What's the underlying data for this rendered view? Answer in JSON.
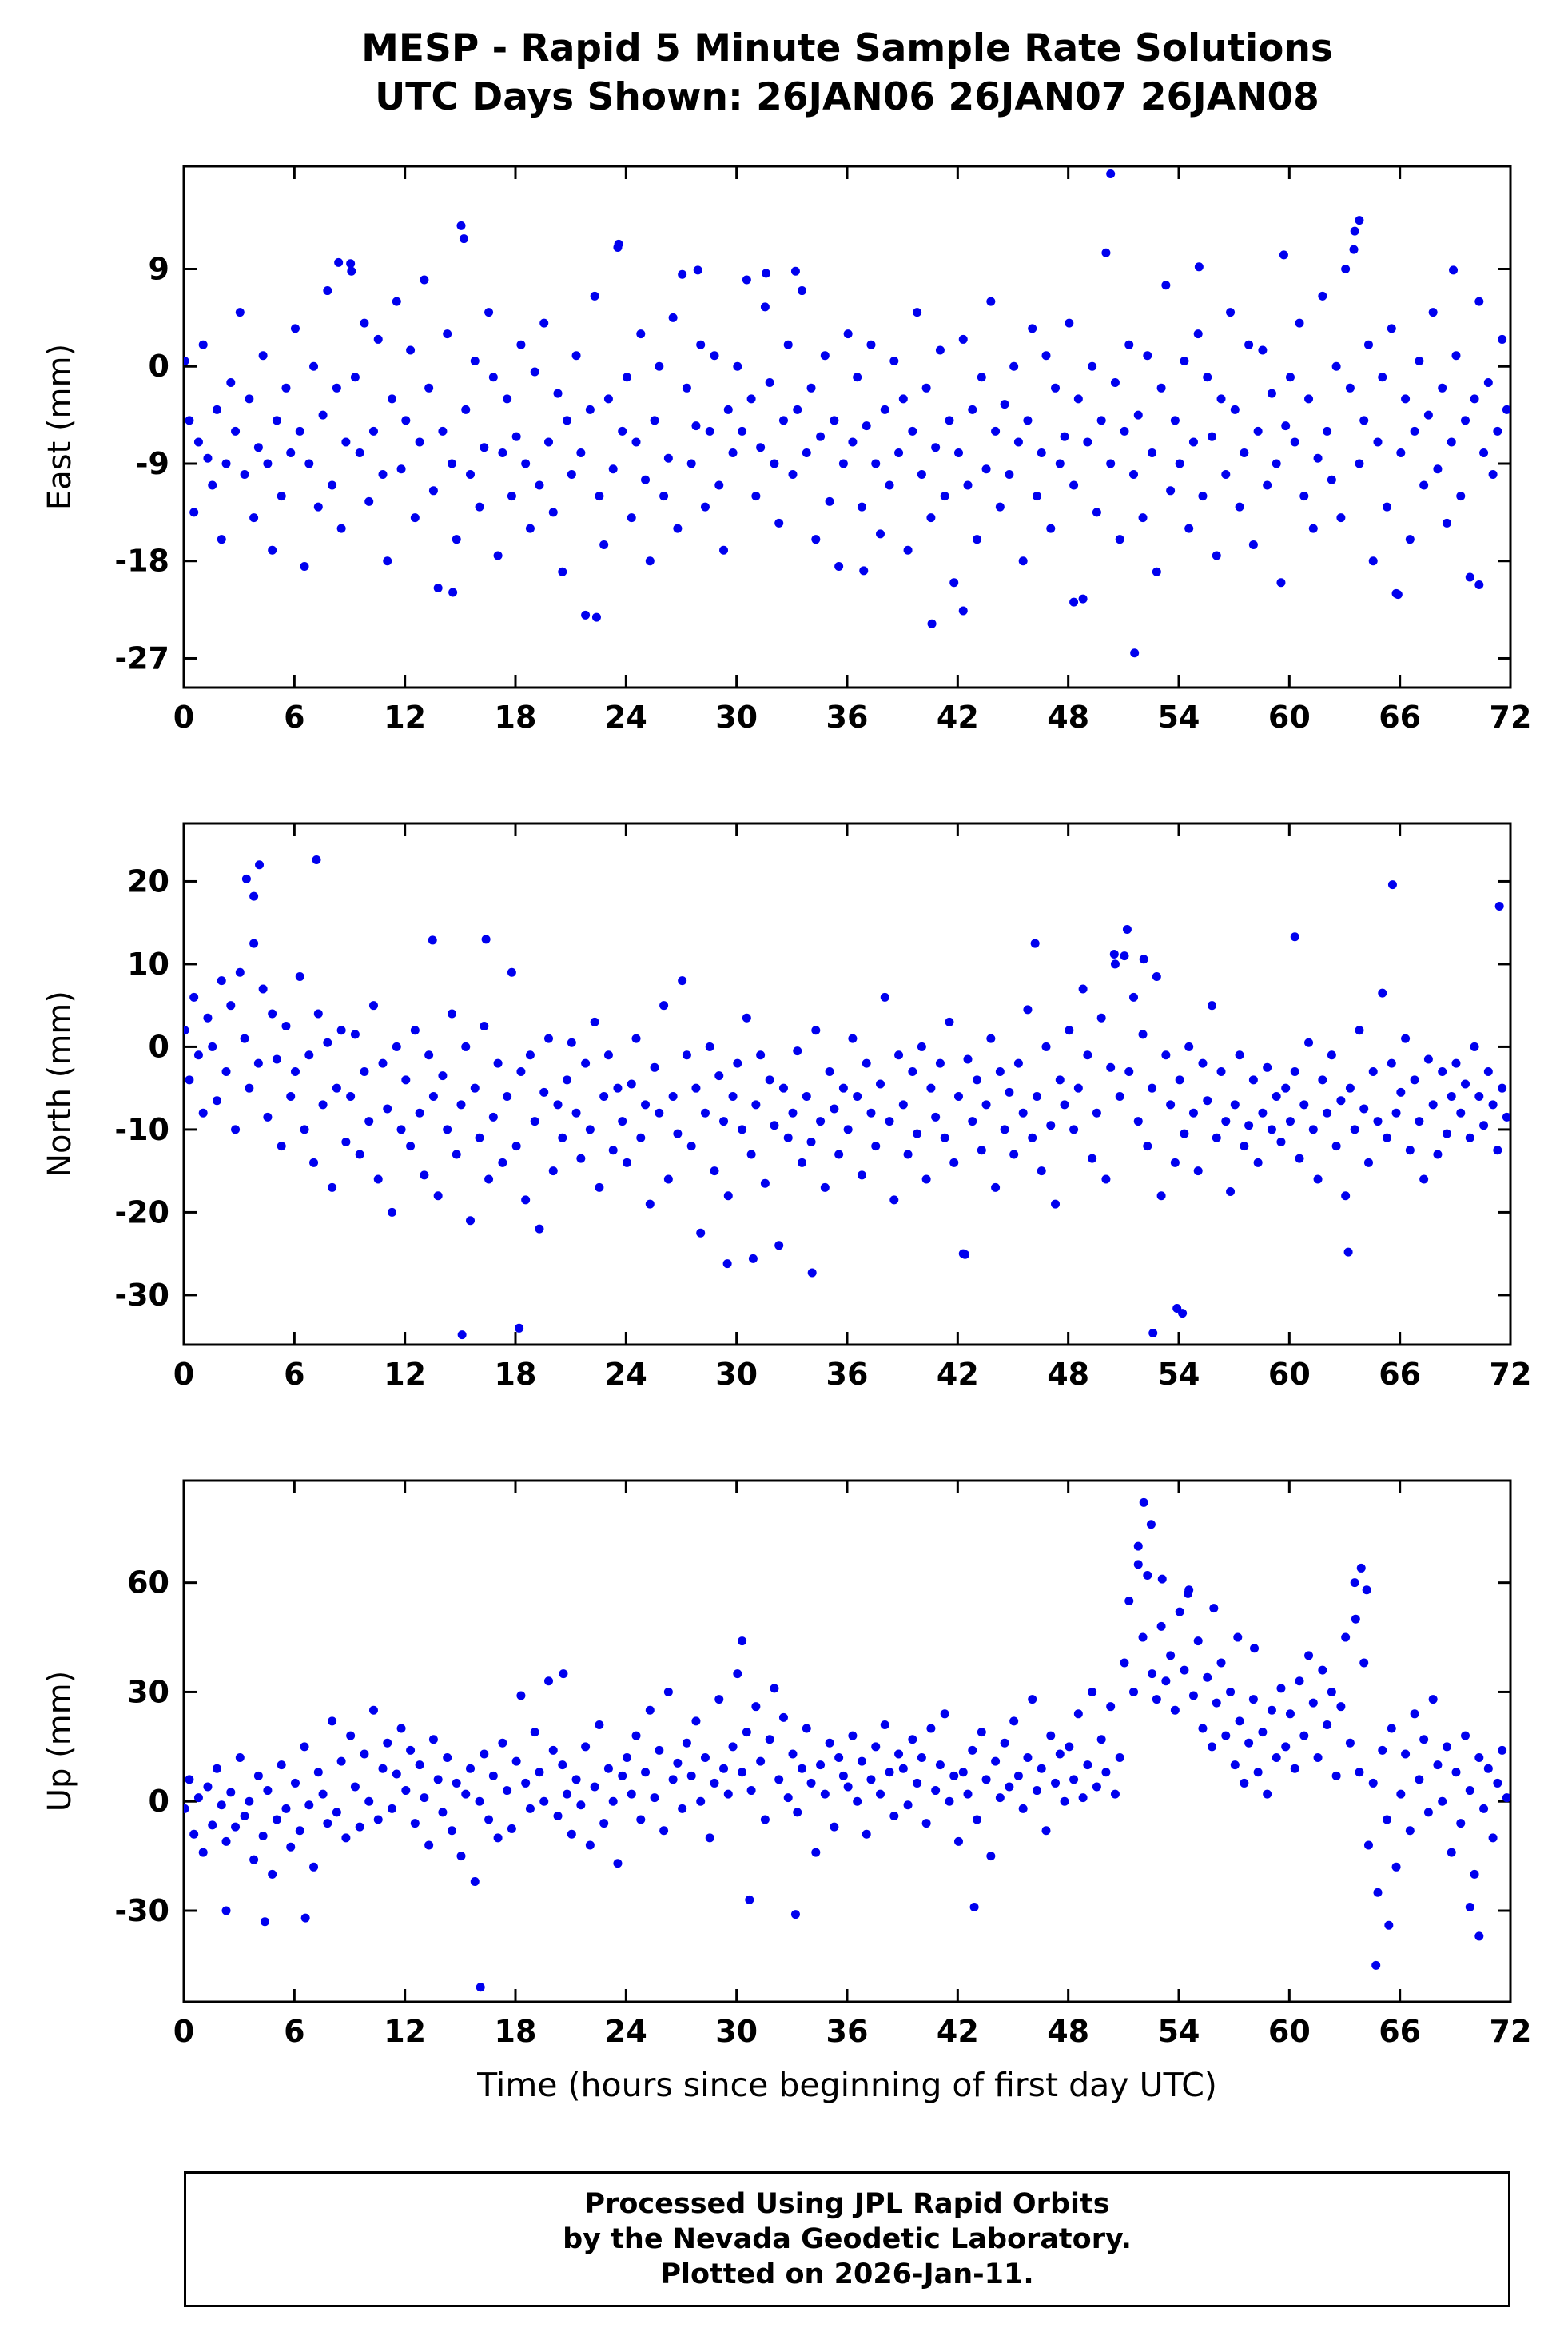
{
  "title": {
    "line1": "MESP - Rapid 5 Minute Sample Rate Solutions",
    "line2": "UTC Days Shown:  26JAN06 26JAN07 26JAN08"
  },
  "footer": {
    "line1": "Processed Using JPL Rapid Orbits",
    "line2": "by the Nevada Geodetic Laboratory.",
    "line3": "Plotted on 2026-Jan-11."
  },
  "chart_data": {
    "type": "scatter",
    "marker": {
      "shape": "circle",
      "color": "#0000EE",
      "radius": 5.5
    },
    "x_axis": {
      "label": "Time (hours since beginning of first day UTC)",
      "range": [
        0,
        72
      ],
      "ticks": [
        0,
        6,
        12,
        18,
        24,
        30,
        36,
        42,
        48,
        54,
        60,
        66,
        72
      ]
    },
    "panels": [
      {
        "id": "east",
        "ylabel": "East (mm)",
        "ylim": [
          -29.7,
          18.5
        ],
        "yticks": [
          9,
          0,
          -9,
          -18,
          -27
        ],
        "x_start": 0.05,
        "x_step": 0.25,
        "y": [
          0.5,
          -5,
          -13.5,
          -7,
          2,
          -8.5,
          -11,
          -4,
          -16,
          -9,
          -1.5,
          -6,
          5,
          -10,
          -3,
          -14,
          -7.5,
          1,
          -9,
          -17,
          -5,
          -12,
          -2,
          -8,
          3.5,
          -6,
          -18.5,
          -9,
          0,
          -13,
          -4.5,
          7,
          -11,
          -2,
          -15,
          -7,
          9.5,
          -1,
          -8,
          4,
          -12.5,
          -6,
          2.5,
          -10,
          -18,
          -3,
          6,
          -9.5,
          -5,
          1.5,
          -14,
          -7,
          8,
          -2,
          -11.5,
          -20.5,
          -6,
          3,
          -9,
          -16,
          13,
          -4,
          -10,
          0.5,
          -13,
          -7.5,
          5,
          -1,
          -17.5,
          -8,
          -3,
          -12,
          -6.5,
          2,
          -9,
          -15,
          -0.5,
          -11,
          4,
          -7,
          -13.5,
          -2.5,
          -19,
          -5,
          -10,
          1,
          -8,
          -23,
          -4,
          6.5,
          -12,
          -16.5,
          -3,
          -9.5,
          11,
          -6,
          -1,
          -14,
          -7,
          3,
          -10.5,
          -18,
          -5,
          0,
          -12,
          -8.5,
          4.5,
          -15,
          8.5,
          -2,
          -9,
          -5.5,
          2,
          -13,
          -6,
          1,
          -11,
          -17,
          -4,
          -8,
          0,
          -6,
          8,
          -3,
          -12,
          -7.5,
          5.5,
          -1.5,
          -9,
          -14.5,
          -5,
          2,
          -10,
          -4,
          7,
          -8,
          -2,
          -16,
          -6.5,
          1,
          -12.5,
          -5,
          -18.5,
          -9,
          3,
          -7,
          -1,
          -13,
          -5.5,
          2,
          -9,
          -15.5,
          -4,
          -11,
          0.5,
          -8,
          -3,
          -17,
          -6,
          5,
          -10,
          -2,
          -14,
          -7.5,
          1.5,
          -12,
          -5,
          -20,
          -8,
          2.5,
          -11,
          -4,
          -16,
          -1,
          -9.5,
          6,
          -6,
          -13,
          -3.5,
          -10,
          0,
          -7,
          -18,
          -5,
          3.5,
          -12,
          -8,
          1,
          -15,
          -2,
          -9,
          -6.5,
          4,
          -11,
          -3,
          -21.5,
          -7,
          0,
          -13.5,
          -5,
          10.5,
          -9,
          -1.5,
          -16,
          -6,
          2,
          -10,
          -4.5,
          -14,
          1,
          -8,
          -19,
          -2,
          7.5,
          -11.5,
          -5,
          -9,
          0.5,
          -15,
          -7,
          3,
          -12,
          -1,
          -6.5,
          -17.5,
          -3,
          -10,
          5,
          -4,
          -13,
          -8,
          2,
          -16.5,
          -6,
          1.5,
          -11,
          -2.5,
          -9,
          -20,
          -5.5,
          -1,
          -7,
          4,
          -12,
          -3,
          -15,
          -8.5,
          6.5,
          -6,
          -10.5,
          0,
          -14,
          9,
          -2,
          12.5,
          -9,
          -5,
          2,
          -18,
          -7,
          -1,
          -13,
          3.5,
          -21,
          -8,
          -3,
          -16,
          -6,
          0.5,
          -11,
          -4.5,
          5,
          -9.5,
          -2,
          -14.5,
          -7,
          1,
          -12,
          -5,
          -19.5,
          -3,
          6,
          -8,
          -1.5,
          -10,
          -6,
          2.5,
          -4
        ],
        "outliers": [
          [
            8.4,
            9.6
          ],
          [
            9.1,
            8.8
          ],
          [
            15.2,
            11.8
          ],
          [
            23.6,
            11.3
          ],
          [
            27.9,
            8.9
          ],
          [
            31.6,
            8.6
          ],
          [
            33.2,
            8.8
          ],
          [
            50.3,
            17.8
          ],
          [
            51.6,
            -26.5
          ],
          [
            22.4,
            -23.2
          ],
          [
            40.6,
            -23.8
          ],
          [
            48.3,
            -21.8
          ],
          [
            55.1,
            9.2
          ],
          [
            59.7,
            10.3
          ],
          [
            63.8,
            13.5
          ],
          [
            63.5,
            10.8
          ],
          [
            68.9,
            8.9
          ],
          [
            14.6,
            -20.9
          ],
          [
            65.9,
            -21.1
          ],
          [
            70.3,
            -20.2
          ],
          [
            36.9,
            -18.9
          ],
          [
            42.3,
            -22.6
          ]
        ]
      },
      {
        "id": "north",
        "ylabel": "North (mm)",
        "ylim": [
          -36,
          27
        ],
        "yticks": [
          20,
          10,
          0,
          -10,
          -20,
          -30
        ],
        "x_start": 0.05,
        "x_step": 0.25,
        "y": [
          2,
          -4,
          6,
          -1,
          -8,
          3.5,
          0,
          -6.5,
          8,
          -3,
          5,
          -10,
          9,
          1,
          -5,
          12.5,
          -2,
          7,
          -8.5,
          4,
          -1.5,
          -12,
          2.5,
          -6,
          -3,
          8.5,
          -10,
          -1,
          -14,
          4,
          -7,
          0.5,
          -17,
          -5,
          2,
          -11.5,
          -6,
          1.5,
          -13,
          -3,
          -9,
          5,
          -16,
          -2,
          -7.5,
          -20,
          0,
          -10,
          -4,
          -12,
          2,
          -8,
          -15.5,
          -1,
          -6,
          -18,
          -3.5,
          -10,
          4,
          -13,
          -7,
          0,
          -21,
          -5,
          -11,
          2.5,
          -16,
          -8.5,
          -2,
          -14,
          -6,
          9,
          -12,
          -3,
          -18.5,
          -1,
          -9,
          -22,
          -5.5,
          1,
          -15,
          -7,
          -11,
          -4,
          0.5,
          -8,
          -13.5,
          -2,
          -10,
          3,
          -17,
          -6,
          -1,
          -12.5,
          -5,
          -9,
          -14,
          -4.5,
          1,
          -11,
          -7,
          -19,
          -2.5,
          -8,
          5,
          -16,
          -6,
          -10.5,
          8,
          -1,
          -12,
          -5,
          -22.5,
          -8,
          0,
          -15,
          -3.5,
          -9,
          -18,
          -6,
          -2,
          -10,
          3.5,
          -13,
          -7,
          -1,
          -16.5,
          -4,
          -9.5,
          -24,
          -5,
          -11,
          -8,
          -0.5,
          -14,
          -6,
          -11.5,
          2,
          -9,
          -17,
          -3,
          -7.5,
          -13,
          -5,
          -10,
          1,
          -6,
          -15.5,
          -2,
          -8,
          -12,
          -4.5,
          6,
          -9,
          -18.5,
          -1,
          -7,
          -13,
          -3,
          -10.5,
          0,
          -16,
          -5,
          -8.5,
          -2,
          -11,
          3,
          -14,
          -6,
          -25,
          -1.5,
          -9,
          -4,
          -12.5,
          -7,
          1,
          -17,
          -3,
          -10,
          -5.5,
          -13,
          -2,
          -8,
          4.5,
          -11,
          -6,
          -15,
          0,
          -9.5,
          -19,
          -4,
          -7,
          2,
          -10,
          -5,
          7,
          -1,
          -13.5,
          -8,
          3.5,
          -16,
          -2.5,
          10,
          -6,
          11,
          -3,
          6,
          -9,
          1.5,
          -12,
          -5,
          8.5,
          -18,
          -1,
          -7,
          -14,
          -4,
          -10.5,
          0,
          -8,
          -15,
          -2,
          -6.5,
          5,
          -11,
          -3,
          -9,
          -17.5,
          -7,
          -1,
          -12,
          -9.5,
          -4,
          -14,
          -8,
          -2.5,
          -10,
          -6,
          -11.5,
          -5,
          -9,
          -3,
          -13.5,
          -7,
          0.5,
          -10,
          -16,
          -4,
          -8,
          -1,
          -12,
          -6.5,
          -18,
          -5,
          -10,
          2,
          -7.5,
          -14,
          -3,
          -9,
          6.5,
          -11,
          -2,
          -8,
          -5.5,
          1,
          -12.5,
          -4,
          -9,
          -16,
          -1.5,
          -7,
          -13,
          -3,
          -10.5,
          -6,
          -2,
          -8,
          -4.5,
          -11,
          0,
          -6,
          -9.5,
          -3,
          -7,
          -12.5,
          -5,
          -8.5
        ],
        "outliers": [
          [
            3.4,
            20.3
          ],
          [
            3.8,
            18.2
          ],
          [
            4.1,
            22.0
          ],
          [
            7.2,
            22.6
          ],
          [
            13.5,
            12.9
          ],
          [
            16.4,
            13.0
          ],
          [
            46.2,
            12.5
          ],
          [
            50.5,
            11.2
          ],
          [
            51.2,
            14.2
          ],
          [
            52.1,
            10.6
          ],
          [
            60.3,
            13.3
          ],
          [
            65.6,
            19.6
          ],
          [
            71.4,
            17.0
          ],
          [
            15.1,
            -34.8
          ],
          [
            18.2,
            -34.0
          ],
          [
            52.6,
            -34.6
          ],
          [
            53.9,
            -31.6
          ],
          [
            54.2,
            -32.2
          ],
          [
            63.2,
            -24.8
          ],
          [
            30.9,
            -25.6
          ],
          [
            34.1,
            -27.3
          ],
          [
            42.4,
            -25.1
          ],
          [
            29.5,
            -26.2
          ]
        ]
      },
      {
        "id": "up",
        "ylabel": "Up (mm)",
        "ylim": [
          -55,
          88
        ],
        "yticks": [
          60,
          30,
          0,
          -30
        ],
        "x_start": 0.05,
        "x_step": 0.25,
        "y": [
          -2,
          6,
          -9,
          1,
          -14,
          4,
          -6.5,
          9,
          -1,
          -11,
          2.5,
          -7,
          12,
          -4,
          0,
          -16,
          7,
          -9.5,
          3,
          -20,
          -5,
          10,
          -2,
          -12.5,
          5,
          -8,
          15,
          -1,
          -18,
          8,
          2,
          -6,
          22,
          -3,
          11,
          -10,
          18,
          4,
          -7,
          13,
          0,
          25,
          -5,
          9,
          16,
          -2,
          7.5,
          20,
          3,
          14,
          -6,
          10,
          1,
          -12,
          17,
          6,
          -3,
          12,
          -8,
          5,
          -15,
          2,
          9,
          -22,
          0,
          13,
          -5,
          7,
          -10,
          16,
          3,
          -7.5,
          11,
          29,
          5,
          -2,
          19,
          8,
          0,
          33,
          14,
          -4,
          10,
          2,
          -9,
          6,
          -1,
          15,
          -12,
          4,
          21,
          -6,
          9,
          0,
          -17,
          7,
          12,
          2,
          18,
          -5,
          8,
          25,
          1,
          14,
          -8,
          30,
          6,
          10.5,
          -2,
          16,
          7,
          22,
          0,
          12,
          -10,
          5,
          28,
          9,
          2,
          15,
          35,
          8,
          19,
          3,
          26,
          11,
          -5,
          17,
          31,
          6,
          23,
          1,
          13,
          -3,
          9,
          20,
          5,
          -14,
          10,
          2,
          16,
          -7,
          12,
          7,
          4,
          18,
          0,
          11,
          -9,
          6,
          15,
          2,
          21,
          8,
          -4,
          13,
          9,
          -1,
          17,
          5,
          12,
          -6,
          20,
          3,
          10,
          24,
          0,
          7,
          -11,
          8,
          2,
          14,
          -5,
          19,
          6,
          -15,
          11,
          1,
          16,
          4,
          22,
          7,
          -2,
          12,
          28,
          3,
          9,
          -8,
          18,
          5,
          13,
          0,
          15,
          6,
          24,
          1,
          10,
          30,
          4,
          17,
          8,
          26,
          2,
          12,
          38,
          55,
          30,
          70,
          45,
          62,
          35,
          28,
          48,
          33,
          40,
          25,
          52,
          36,
          58,
          29,
          44,
          20,
          34,
          15,
          27,
          38,
          18,
          30,
          10,
          22,
          5,
          16,
          28,
          8,
          19,
          2,
          25,
          12,
          31,
          15,
          24,
          9,
          33,
          18,
          40,
          27,
          12,
          36,
          21,
          30,
          7,
          26,
          45,
          16,
          60,
          8,
          38,
          -12,
          5,
          -25,
          14,
          -5,
          20,
          -18,
          2,
          13,
          -8,
          24,
          6,
          17,
          -3,
          28,
          10,
          0,
          15,
          -14,
          8,
          -6,
          18,
          3,
          -20,
          12,
          -2,
          9,
          -10,
          5,
          14,
          1
        ],
        "outliers": [
          [
            52.1,
            82
          ],
          [
            52.5,
            76
          ],
          [
            51.8,
            65
          ],
          [
            53.1,
            61
          ],
          [
            54.5,
            57
          ],
          [
            55.9,
            53
          ],
          [
            63.9,
            64
          ],
          [
            64.2,
            58
          ],
          [
            63.6,
            50
          ],
          [
            30.3,
            44
          ],
          [
            20.6,
            35
          ],
          [
            57.2,
            45
          ],
          [
            58.1,
            42
          ],
          [
            16.1,
            -51
          ],
          [
            64.7,
            -45
          ],
          [
            70.3,
            -37
          ],
          [
            65.4,
            -34
          ],
          [
            2.3,
            -30
          ],
          [
            4.4,
            -33
          ],
          [
            6.6,
            -32
          ],
          [
            30.7,
            -27
          ],
          [
            33.2,
            -31
          ],
          [
            42.9,
            -29
          ],
          [
            69.8,
            -29
          ]
        ]
      }
    ]
  }
}
